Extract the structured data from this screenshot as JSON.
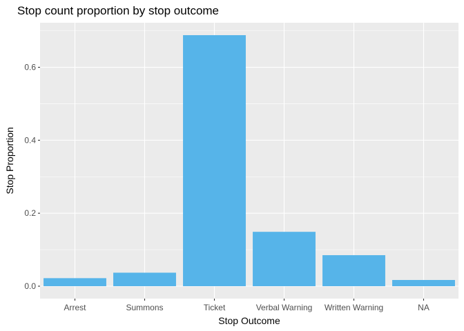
{
  "chart_data": {
    "type": "bar",
    "title": "Stop count proportion by stop outcome",
    "xlabel": "Stop Outcome",
    "ylabel": "Stop Proportion",
    "categories": [
      "Arrest",
      "Summons",
      "Ticket",
      "Verbal Warning",
      "Written Warning",
      "NA"
    ],
    "values": [
      0.022,
      0.037,
      0.688,
      0.149,
      0.085,
      0.017
    ],
    "ylim": [
      -0.034,
      0.722
    ],
    "yticks": [
      0.0,
      0.2,
      0.4,
      0.6
    ],
    "ytick_labels": [
      "0.0",
      "0.2",
      "0.4",
      "0.6"
    ],
    "grid": true,
    "colors": {
      "bar": "#56B4E9",
      "panel_background": "#EBEBEB",
      "grid_major": "#FFFFFF"
    }
  }
}
